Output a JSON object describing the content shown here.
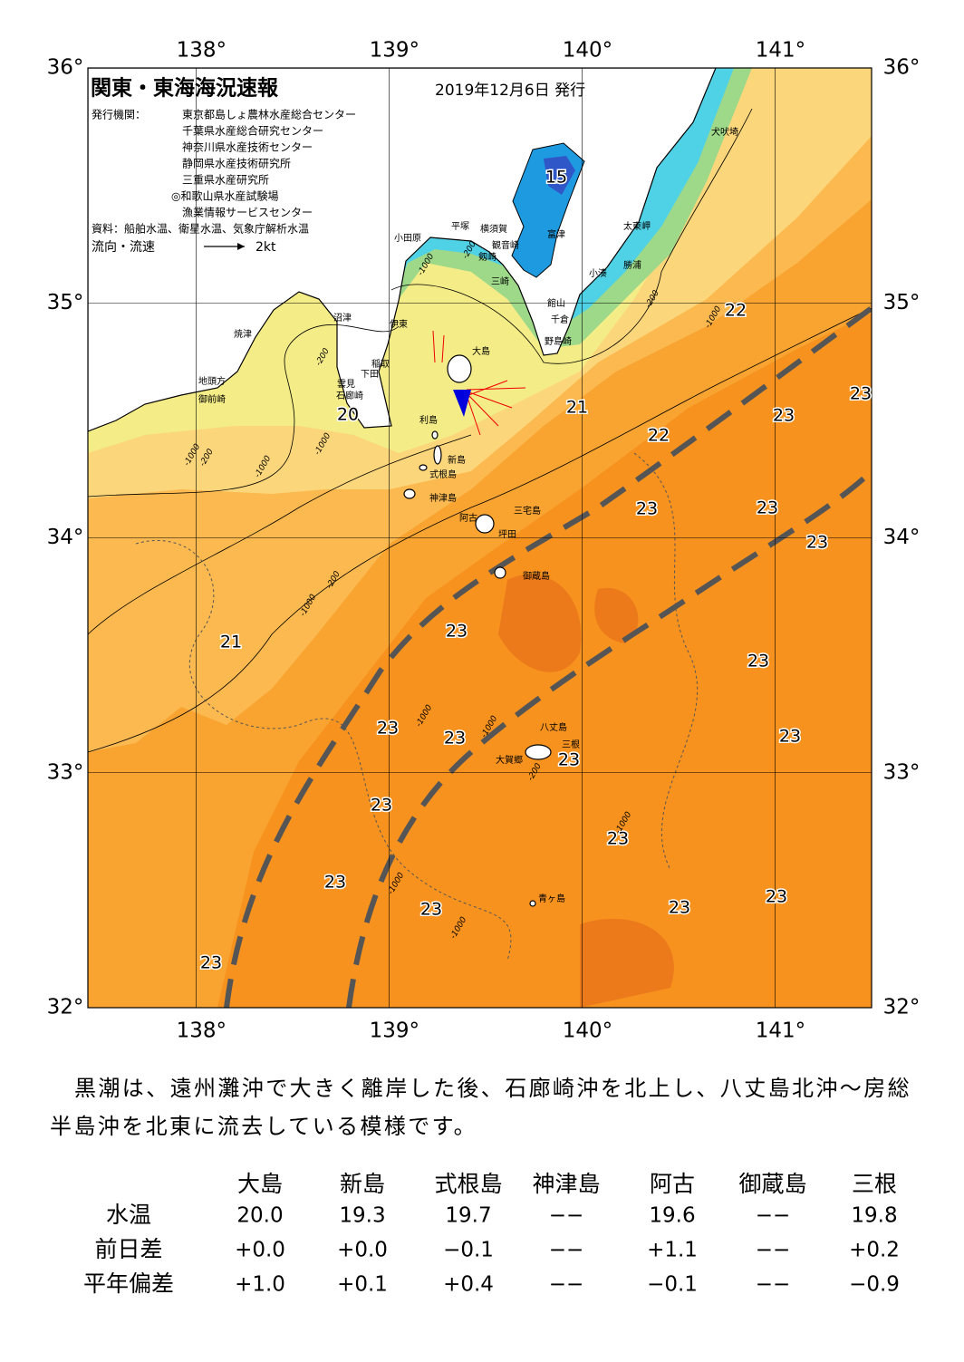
{
  "header": {
    "title": "関東・東海海況速報",
    "date": "2019年12月6日 発行",
    "issuers_label": "発行機関：",
    "issuers": [
      "東京都島しょ農林水産総合センター",
      "千葉県水産総合研究センター",
      "神奈川県水産技術センター",
      "静岡県水産技術研究所",
      "三重県水産研究所",
      "◎和歌山県水産試験場",
      "漁業情報サービスセンター"
    ],
    "source": "資料：船舶水温、衛星水温、気象庁解析水温",
    "legend_label": "流向・流速",
    "legend_speed": "2kt"
  },
  "map": {
    "lon_range": [
      137.44,
      141.5
    ],
    "lat_range": [
      32,
      36
    ],
    "lon_ticks": [
      {
        "value": 138,
        "label": "138°"
      },
      {
        "value": 139,
        "label": "139°"
      },
      {
        "value": 140,
        "label": "140°"
      },
      {
        "value": 141,
        "label": "141°"
      }
    ],
    "lat_ticks": [
      {
        "value": 32,
        "label": "32°"
      },
      {
        "value": 33,
        "label": "33°"
      },
      {
        "value": 34,
        "label": "34°"
      },
      {
        "value": 35,
        "label": "35°"
      },
      {
        "value": 36,
        "label": "36°"
      }
    ],
    "places": [
      "犬吠埼",
      "太東岬",
      "勝浦",
      "小湊",
      "館山",
      "千倉",
      "野島崎",
      "富津",
      "横須賀",
      "観音崎",
      "剱崎",
      "三崎",
      "平塚",
      "小田原",
      "沼津",
      "伊東",
      "焼津",
      "稲取",
      "下田",
      "雲見",
      "石廊崎",
      "地頭方",
      "御前崎",
      "大島",
      "利島",
      "新島",
      "式根島",
      "神津島",
      "三宅島",
      "阿古",
      "坪田",
      "御蔵島",
      "八丈島",
      "三根",
      "大賀郷",
      "青ヶ島"
    ],
    "temperature_labels": [
      15,
      22,
      23,
      20,
      21,
      23,
      22,
      23,
      23,
      23,
      21,
      23,
      23,
      23,
      23,
      23,
      23,
      23,
      23,
      23,
      23,
      23,
      23,
      23
    ],
    "depth_labels": [
      "-200",
      "-1000",
      "-200",
      "-1000",
      "-200",
      "-1000",
      "-200",
      "-1000",
      "-1000",
      "-200",
      "-1000",
      "-1000",
      "-1000",
      "-1000",
      "-200",
      "-1000",
      "-1000"
    ]
  },
  "summary": "黒潮は、遠州灘沖で大きく離岸した後、石廊崎沖を北上し、八丈島北沖～房総半島沖を北東に流去している模様です。",
  "table": {
    "columns": [
      "大島",
      "新島",
      "式根島",
      "神津島",
      "阿古",
      "御蔵島",
      "三根"
    ],
    "rows": [
      {
        "label": "水温",
        "cells": [
          "20.0",
          "19.3",
          "19.7",
          "−−",
          "19.6",
          "−−",
          "19.8"
        ]
      },
      {
        "label": "前日差",
        "cells": [
          "+0.0",
          "+0.0",
          "−0.1",
          "−−",
          "+1.1",
          "−−",
          "+0.2"
        ]
      },
      {
        "label": "平年偏差",
        "cells": [
          "+1.0",
          "+0.1",
          "+0.4",
          "−−",
          "−0.1",
          "−−",
          "−0.9"
        ]
      }
    ]
  }
}
